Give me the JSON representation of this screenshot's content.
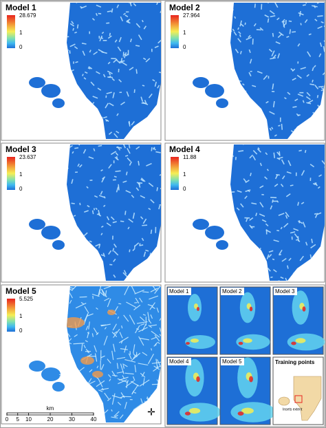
{
  "panels": [
    {
      "title": "Model 1",
      "legend": {
        "max": 28.679,
        "mid": 1,
        "min": 0
      }
    },
    {
      "title": "Model 2",
      "legend": {
        "max": 27.964,
        "mid": 1,
        "min": 0
      }
    },
    {
      "title": "Model 3",
      "legend": {
        "max": 23.637,
        "mid": 1,
        "min": 0
      }
    },
    {
      "title": "Model 4",
      "legend": {
        "max": 11.88,
        "mid": 1,
        "min": 0
      }
    },
    {
      "title": "Model 5",
      "legend": {
        "max": 5.525,
        "mid": 1,
        "min": 0
      }
    }
  ],
  "scale_bar": {
    "unit": "km",
    "ticks": [
      0,
      5,
      10,
      20,
      30,
      40
    ]
  },
  "insets": {
    "panels": [
      {
        "title": "Model 1"
      },
      {
        "title": "Model 2"
      },
      {
        "title": "Model 3"
      },
      {
        "title": "Model 4"
      },
      {
        "title": "Model 5"
      }
    ],
    "training": {
      "title": "Training points",
      "note": "Insets extent"
    }
  }
}
